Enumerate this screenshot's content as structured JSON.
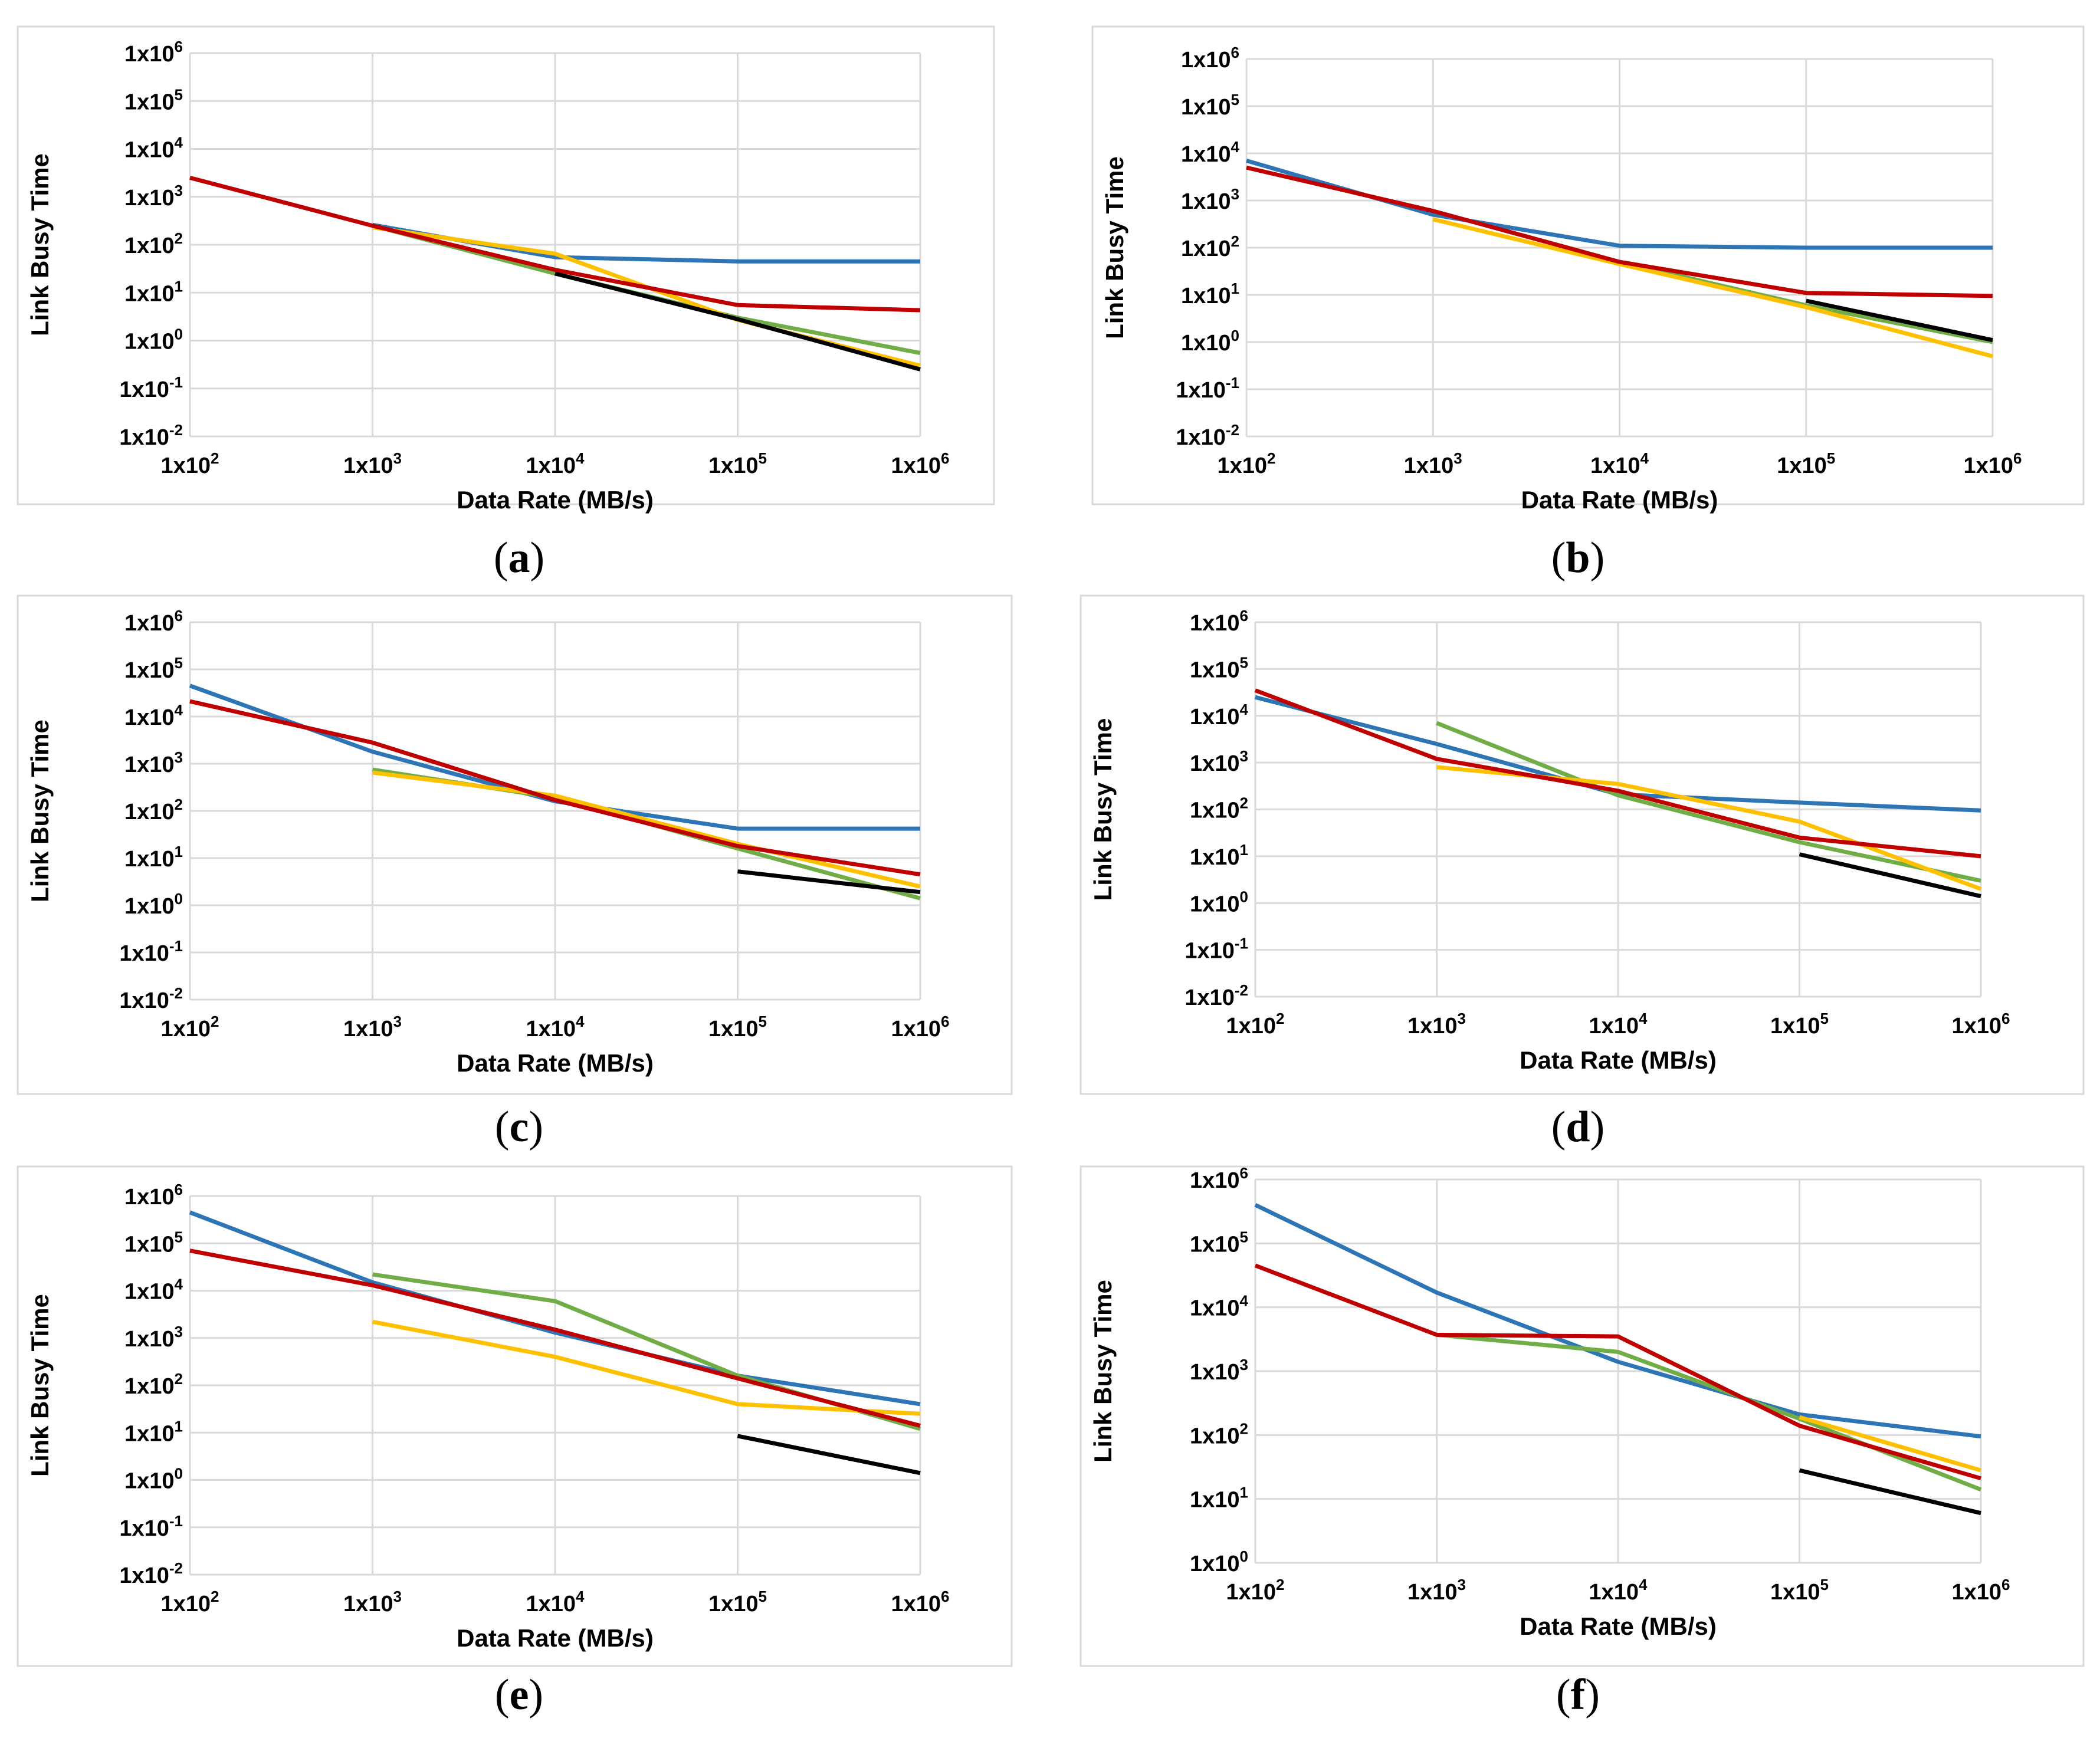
{
  "colors": {
    "blue": "#2E75B6",
    "red": "#C00000",
    "green": "#70AD47",
    "yellow": "#FFC000",
    "black": "#000000",
    "grid": "#D9D9D9",
    "frame": "#D9D9D9",
    "text": "#000000"
  },
  "chart_data": [
    {
      "type": "line",
      "id": "a",
      "caption_open": "(",
      "caption_letter": "a",
      "caption_close": ")",
      "xlabel": "Data Rate (MB/s)",
      "ylabel": "Link Busy Time",
      "x_scale": "log",
      "y_scale": "log",
      "xlim": [
        100,
        1000000
      ],
      "ylim": [
        0.01,
        1000000
      ],
      "x_ticks": [
        {
          "value": 100,
          "base": "1x10",
          "exp": "2"
        },
        {
          "value": 1000,
          "base": "1x10",
          "exp": "3"
        },
        {
          "value": 10000,
          "base": "1x10",
          "exp": "4"
        },
        {
          "value": 100000,
          "base": "1x10",
          "exp": "5"
        },
        {
          "value": 1000000,
          "base": "1x10",
          "exp": "6"
        }
      ],
      "y_ticks": [
        {
          "value": 0.01,
          "base": "1x10",
          "exp": "-2"
        },
        {
          "value": 0.1,
          "base": "1x10",
          "exp": "-1"
        },
        {
          "value": 1,
          "base": "1x10",
          "exp": "0"
        },
        {
          "value": 10,
          "base": "1x10",
          "exp": "1"
        },
        {
          "value": 100,
          "base": "1x10",
          "exp": "2"
        },
        {
          "value": 1000,
          "base": "1x10",
          "exp": "3"
        },
        {
          "value": 10000,
          "base": "1x10",
          "exp": "4"
        },
        {
          "value": 100000,
          "base": "1x10",
          "exp": "5"
        },
        {
          "value": 1000000,
          "base": "1x10",
          "exp": "6"
        }
      ],
      "series": [
        {
          "color": "blue",
          "x": [
            1000,
            10000,
            100000,
            1000000
          ],
          "y": [
            260,
            55,
            45,
            45
          ]
        },
        {
          "color": "green",
          "x": [
            1000,
            10000,
            100000,
            1000000
          ],
          "y": [
            250,
            25,
            3,
            0.55
          ]
        },
        {
          "color": "yellow",
          "x": [
            1000,
            10000,
            100000,
            1000000
          ],
          "y": [
            230,
            65,
            2.7,
            0.3
          ]
        },
        {
          "color": "black",
          "x": [
            10000,
            100000,
            1000000
          ],
          "y": [
            25,
            2.8,
            0.25
          ]
        },
        {
          "color": "red",
          "x": [
            100,
            1000,
            10000,
            100000,
            1000000
          ],
          "y": [
            2500,
            250,
            30,
            5.5,
            4.3
          ]
        }
      ]
    },
    {
      "type": "line",
      "id": "b",
      "caption_open": "(",
      "caption_letter": "b",
      "caption_close": ")",
      "xlabel": "Data Rate (MB/s)",
      "ylabel": "Link Busy Time",
      "x_scale": "log",
      "y_scale": "log",
      "xlim": [
        100,
        1000000
      ],
      "ylim": [
        0.01,
        1000000
      ],
      "x_ticks": [
        {
          "value": 100,
          "base": "1x10",
          "exp": "2"
        },
        {
          "value": 1000,
          "base": "1x10",
          "exp": "3"
        },
        {
          "value": 10000,
          "base": "1x10",
          "exp": "4"
        },
        {
          "value": 100000,
          "base": "1x10",
          "exp": "5"
        },
        {
          "value": 1000000,
          "base": "1x10",
          "exp": "6"
        }
      ],
      "y_ticks": [
        {
          "value": 0.01,
          "base": "1x10",
          "exp": "-2"
        },
        {
          "value": 0.1,
          "base": "1x10",
          "exp": "-1"
        },
        {
          "value": 1,
          "base": "1x10",
          "exp": "0"
        },
        {
          "value": 10,
          "base": "1x10",
          "exp": "1"
        },
        {
          "value": 100,
          "base": "1x10",
          "exp": "2"
        },
        {
          "value": 1000,
          "base": "1x10",
          "exp": "3"
        },
        {
          "value": 10000,
          "base": "1x10",
          "exp": "4"
        },
        {
          "value": 100000,
          "base": "1x10",
          "exp": "5"
        },
        {
          "value": 1000000,
          "base": "1x10",
          "exp": "6"
        }
      ],
      "series": [
        {
          "color": "blue",
          "x": [
            100,
            1000,
            10000,
            100000,
            1000000
          ],
          "y": [
            7000,
            500,
            110,
            100,
            100
          ]
        },
        {
          "color": "green",
          "x": [
            1000,
            10000,
            100000,
            1000000
          ],
          "y": [
            600,
            50,
            6,
            1
          ]
        },
        {
          "color": "yellow",
          "x": [
            1000,
            10000,
            100000,
            1000000
          ],
          "y": [
            400,
            45,
            5.5,
            0.5
          ]
        },
        {
          "color": "black",
          "x": [
            100000,
            1000000
          ],
          "y": [
            7.5,
            1.1
          ]
        },
        {
          "color": "red",
          "x": [
            100,
            1000,
            10000,
            100000,
            1000000
          ],
          "y": [
            5000,
            600,
            50,
            11,
            9.5
          ]
        }
      ]
    },
    {
      "type": "line",
      "id": "c",
      "caption_open": "(",
      "caption_letter": "c",
      "caption_close": ")",
      "xlabel": "Data Rate (MB/s)",
      "ylabel": "Link Busy Time",
      "x_scale": "log",
      "y_scale": "log",
      "xlim": [
        100,
        1000000
      ],
      "ylim": [
        0.01,
        1000000
      ],
      "x_ticks": [
        {
          "value": 100,
          "base": "1x10",
          "exp": "2"
        },
        {
          "value": 1000,
          "base": "1x10",
          "exp": "3"
        },
        {
          "value": 10000,
          "base": "1x10",
          "exp": "4"
        },
        {
          "value": 100000,
          "base": "1x10",
          "exp": "5"
        },
        {
          "value": 1000000,
          "base": "1x10",
          "exp": "6"
        }
      ],
      "y_ticks": [
        {
          "value": 0.01,
          "base": "1x10",
          "exp": "-2"
        },
        {
          "value": 0.1,
          "base": "1x10",
          "exp": "-1"
        },
        {
          "value": 1,
          "base": "1x10",
          "exp": "0"
        },
        {
          "value": 10,
          "base": "1x10",
          "exp": "1"
        },
        {
          "value": 100,
          "base": "1x10",
          "exp": "2"
        },
        {
          "value": 1000,
          "base": "1x10",
          "exp": "3"
        },
        {
          "value": 10000,
          "base": "1x10",
          "exp": "4"
        },
        {
          "value": 100000,
          "base": "1x10",
          "exp": "5"
        },
        {
          "value": 1000000,
          "base": "1x10",
          "exp": "6"
        }
      ],
      "series": [
        {
          "color": "blue",
          "x": [
            100,
            1000,
            10000,
            100000,
            1000000
          ],
          "y": [
            45000,
            1800,
            160,
            42,
            42
          ]
        },
        {
          "color": "green",
          "x": [
            1000,
            10000,
            100000,
            1000000
          ],
          "y": [
            750,
            190,
            16,
            1.4
          ]
        },
        {
          "color": "yellow",
          "x": [
            1000,
            10000,
            100000,
            1000000
          ],
          "y": [
            650,
            210,
            20,
            2.5
          ]
        },
        {
          "color": "black",
          "x": [
            100000,
            1000000
          ],
          "y": [
            5.2,
            1.9
          ]
        },
        {
          "color": "red",
          "x": [
            100,
            1000,
            10000,
            100000,
            1000000
          ],
          "y": [
            21000,
            2800,
            170,
            18,
            4.5
          ]
        }
      ]
    },
    {
      "type": "line",
      "id": "d",
      "caption_open": "(",
      "caption_letter": "d",
      "caption_close": ")",
      "xlabel": "Data Rate (MB/s)",
      "ylabel": "Link Busy Time",
      "x_scale": "log",
      "y_scale": "log",
      "xlim": [
        100,
        1000000
      ],
      "ylim": [
        0.01,
        1000000
      ],
      "x_ticks": [
        {
          "value": 100,
          "base": "1x10",
          "exp": "2"
        },
        {
          "value": 1000,
          "base": "1x10",
          "exp": "3"
        },
        {
          "value": 10000,
          "base": "1x10",
          "exp": "4"
        },
        {
          "value": 100000,
          "base": "1x10",
          "exp": "5"
        },
        {
          "value": 1000000,
          "base": "1x10",
          "exp": "6"
        }
      ],
      "y_ticks": [
        {
          "value": 0.01,
          "base": "1x10",
          "exp": "-2"
        },
        {
          "value": 0.1,
          "base": "1x10",
          "exp": "-1"
        },
        {
          "value": 1,
          "base": "1x10",
          "exp": "0"
        },
        {
          "value": 10,
          "base": "1x10",
          "exp": "1"
        },
        {
          "value": 100,
          "base": "1x10",
          "exp": "2"
        },
        {
          "value": 1000,
          "base": "1x10",
          "exp": "3"
        },
        {
          "value": 10000,
          "base": "1x10",
          "exp": "4"
        },
        {
          "value": 100000,
          "base": "1x10",
          "exp": "5"
        },
        {
          "value": 1000000,
          "base": "1x10",
          "exp": "6"
        }
      ],
      "series": [
        {
          "color": "blue",
          "x": [
            100,
            1000,
            10000,
            100000,
            1000000
          ],
          "y": [
            25000,
            2500,
            210,
            140,
            95
          ]
        },
        {
          "color": "green",
          "x": [
            1000,
            10000,
            100000,
            1000000
          ],
          "y": [
            7000,
            200,
            20,
            3
          ]
        },
        {
          "color": "yellow",
          "x": [
            1000,
            10000,
            100000,
            1000000
          ],
          "y": [
            800,
            350,
            55,
            2
          ]
        },
        {
          "color": "black",
          "x": [
            100000,
            1000000
          ],
          "y": [
            11,
            1.4
          ]
        },
        {
          "color": "red",
          "x": [
            100,
            1000,
            10000,
            100000,
            1000000
          ],
          "y": [
            35000,
            1200,
            250,
            25,
            10
          ]
        }
      ]
    },
    {
      "type": "line",
      "id": "e",
      "caption_open": "(",
      "caption_letter": "e",
      "caption_close": ")",
      "xlabel": "Data Rate (MB/s)",
      "ylabel": "Link Busy Time",
      "x_scale": "log",
      "y_scale": "log",
      "xlim": [
        100,
        1000000
      ],
      "ylim": [
        0.01,
        1000000
      ],
      "x_ticks": [
        {
          "value": 100,
          "base": "1x10",
          "exp": "2"
        },
        {
          "value": 1000,
          "base": "1x10",
          "exp": "3"
        },
        {
          "value": 10000,
          "base": "1x10",
          "exp": "4"
        },
        {
          "value": 100000,
          "base": "1x10",
          "exp": "5"
        },
        {
          "value": 1000000,
          "base": "1x10",
          "exp": "6"
        }
      ],
      "y_ticks": [
        {
          "value": 0.01,
          "base": "1x10",
          "exp": "-2"
        },
        {
          "value": 0.1,
          "base": "1x10",
          "exp": "-1"
        },
        {
          "value": 1,
          "base": "1x10",
          "exp": "0"
        },
        {
          "value": 10,
          "base": "1x10",
          "exp": "1"
        },
        {
          "value": 100,
          "base": "1x10",
          "exp": "2"
        },
        {
          "value": 1000,
          "base": "1x10",
          "exp": "3"
        },
        {
          "value": 10000,
          "base": "1x10",
          "exp": "4"
        },
        {
          "value": 100000,
          "base": "1x10",
          "exp": "5"
        },
        {
          "value": 1000000,
          "base": "1x10",
          "exp": "6"
        }
      ],
      "series": [
        {
          "color": "blue",
          "x": [
            100,
            1000,
            10000,
            100000,
            1000000
          ],
          "y": [
            450000,
            15000,
            1300,
            160,
            40
          ]
        },
        {
          "color": "green",
          "x": [
            1000,
            10000,
            100000,
            1000000
          ],
          "y": [
            22000,
            6000,
            160,
            12
          ]
        },
        {
          "color": "yellow",
          "x": [
            1000,
            10000,
            100000,
            1000000
          ],
          "y": [
            2200,
            400,
            40,
            25
          ]
        },
        {
          "color": "black",
          "x": [
            100000,
            1000000
          ],
          "y": [
            8.5,
            1.4
          ]
        },
        {
          "color": "red",
          "x": [
            100,
            1000,
            10000,
            100000,
            1000000
          ],
          "y": [
            70000,
            13000,
            1500,
            140,
            14
          ]
        }
      ]
    },
    {
      "type": "line",
      "id": "f",
      "caption_open": "(",
      "caption_letter": "f",
      "caption_close": ")",
      "xlabel": "Data Rate (MB/s)",
      "ylabel": "Link Busy Time",
      "x_scale": "log",
      "y_scale": "log",
      "xlim": [
        100,
        1000000
      ],
      "ylim": [
        1,
        1000000
      ],
      "x_ticks": [
        {
          "value": 100,
          "base": "1x10",
          "exp": "2"
        },
        {
          "value": 1000,
          "base": "1x10",
          "exp": "3"
        },
        {
          "value": 10000,
          "base": "1x10",
          "exp": "4"
        },
        {
          "value": 100000,
          "base": "1x10",
          "exp": "5"
        },
        {
          "value": 1000000,
          "base": "1x10",
          "exp": "6"
        }
      ],
      "y_ticks": [
        {
          "value": 1,
          "base": "1x10",
          "exp": "0"
        },
        {
          "value": 10,
          "base": "1x10",
          "exp": "1"
        },
        {
          "value": 100,
          "base": "1x10",
          "exp": "2"
        },
        {
          "value": 1000,
          "base": "1x10",
          "exp": "3"
        },
        {
          "value": 10000,
          "base": "1x10",
          "exp": "4"
        },
        {
          "value": 100000,
          "base": "1x10",
          "exp": "5"
        },
        {
          "value": 1000000,
          "base": "1x10",
          "exp": "6"
        }
      ],
      "series": [
        {
          "color": "blue",
          "x": [
            100,
            1000,
            10000,
            100000,
            1000000
          ],
          "y": [
            400000,
            17000,
            1400,
            210,
            95
          ]
        },
        {
          "color": "green",
          "x": [
            1000,
            10000,
            100000,
            1000000
          ],
          "y": [
            3700,
            2000,
            180,
            14
          ]
        },
        {
          "color": "yellow",
          "x": [
            100000,
            1000000
          ],
          "y": [
            190,
            28
          ]
        },
        {
          "color": "black",
          "x": [
            100000,
            1000000
          ],
          "y": [
            28,
            6
          ]
        },
        {
          "color": "red",
          "x": [
            100,
            1000,
            10000,
            100000,
            1000000
          ],
          "y": [
            45000,
            3700,
            3500,
            140,
            21
          ]
        }
      ]
    }
  ]
}
